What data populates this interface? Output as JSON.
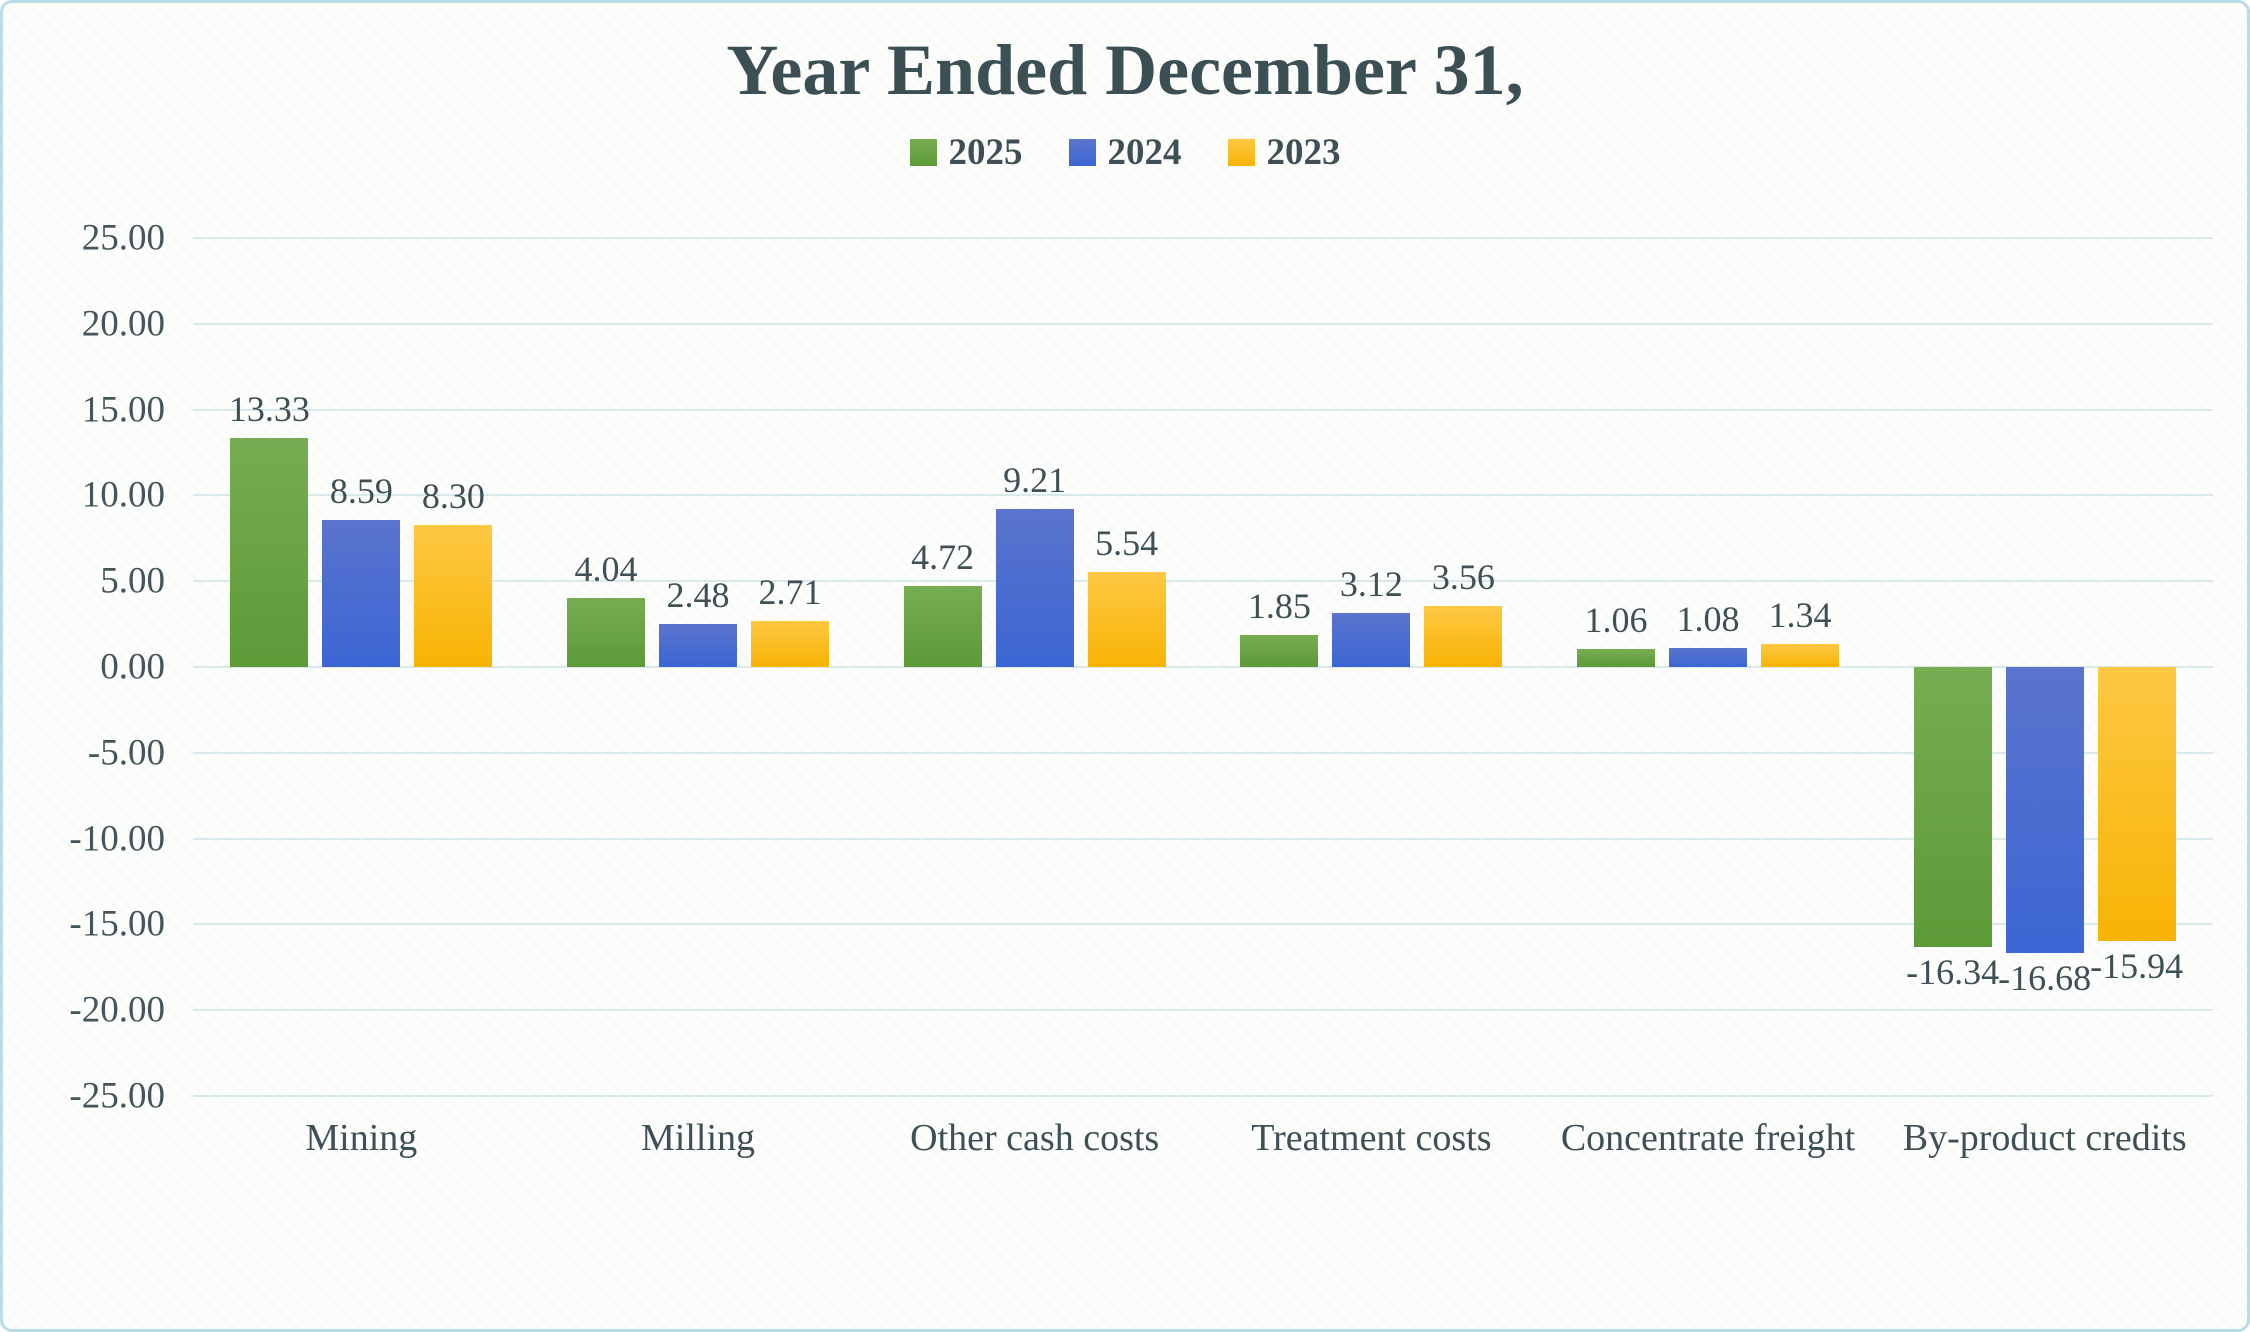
{
  "chart_data": {
    "type": "bar",
    "title": "Year Ended December 31,",
    "categories": [
      "Mining",
      "Milling",
      "Other cash costs",
      "Treatment costs",
      "Concentrate freight",
      "By-product credits"
    ],
    "series": [
      {
        "name": "2025",
        "color": "#6aa84b",
        "gradient_top": "#76ad52",
        "gradient_bottom": "#5d9a38",
        "values": [
          13.33,
          4.04,
          4.72,
          1.85,
          1.06,
          -16.34
        ]
      },
      {
        "name": "2024",
        "color": "#4b70d2",
        "gradient_top": "#5a74cd",
        "gradient_bottom": "#3c66d4",
        "values": [
          8.59,
          2.48,
          9.21,
          3.12,
          1.08,
          -16.68
        ]
      },
      {
        "name": "2023",
        "color": "#fcc32a",
        "gradient_top": "#fdc843",
        "gradient_bottom": "#f8b404",
        "values": [
          8.3,
          2.71,
          5.54,
          3.56,
          1.34,
          -15.94
        ]
      }
    ],
    "ylim": [
      -25,
      25
    ],
    "ytick_step": 5,
    "ytick_labels": [
      "25.00",
      "20.00",
      "15.00",
      "10.00",
      "5.00",
      "0.00",
      "-5.00",
      "-10.00",
      "-15.00",
      "-20.00",
      "-25.00"
    ],
    "grid": true,
    "legend_position": "top",
    "value_label_format": "0.00"
  },
  "style": {
    "text_color": "#3e5055",
    "title_color": "#3c4f54",
    "grid_color": "#d8e9ec",
    "border_color": "#b9dde7"
  }
}
